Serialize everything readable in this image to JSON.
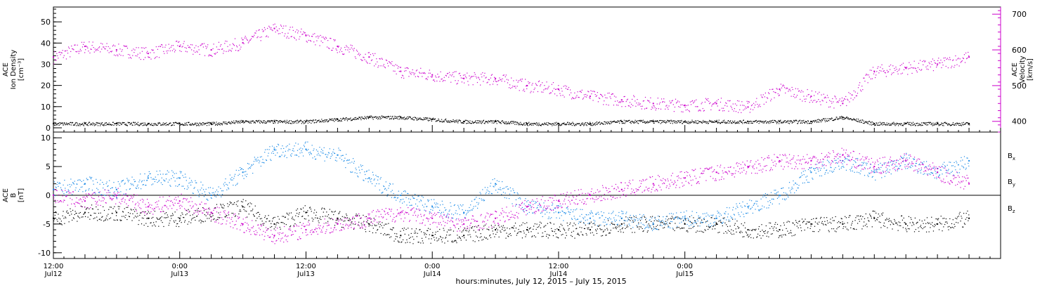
{
  "chart_data": [
    {
      "type": "scatter",
      "panel": "top",
      "left_axis": {
        "label_lines": [
          "ACE",
          "Ion Density",
          "[cm⁻³]"
        ],
        "ylim": [
          -2,
          57
        ],
        "ticks": [
          0,
          10,
          20,
          30,
          40,
          50
        ]
      },
      "right_axis": {
        "label_lines": [
          "ACE",
          "Velocity",
          "[km/s]"
        ],
        "ylim": [
          370,
          720
        ],
        "ticks": [
          400,
          500,
          600,
          700
        ],
        "color": "#cc00cc"
      },
      "series": [
        {
          "name": "Ion Density",
          "color": "#000000",
          "axis": "left",
          "x_hours": [
            0,
            3,
            6,
            9,
            12,
            15,
            18,
            21,
            24,
            27,
            30,
            33,
            36,
            39,
            42,
            45,
            48,
            51,
            54,
            57,
            60,
            63,
            66,
            69,
            72,
            75,
            78,
            81,
            84,
            87
          ],
          "y": [
            2,
            2,
            2,
            2,
            2,
            2,
            3,
            3,
            3,
            4,
            5,
            5,
            4,
            3,
            3,
            2,
            2,
            2,
            3,
            3,
            3,
            3,
            3,
            3,
            3,
            5,
            2,
            2,
            2,
            2
          ]
        },
        {
          "name": "Velocity",
          "color": "#cc00cc",
          "axis": "right",
          "x_hours": [
            0,
            3,
            6,
            9,
            12,
            15,
            18,
            21,
            24,
            27,
            30,
            33,
            36,
            39,
            42,
            45,
            48,
            51,
            54,
            57,
            60,
            63,
            66,
            69,
            72,
            75,
            78,
            81,
            84,
            87
          ],
          "y": [
            580,
            610,
            600,
            590,
            610,
            600,
            620,
            660,
            640,
            610,
            580,
            540,
            530,
            520,
            520,
            500,
            490,
            470,
            460,
            450,
            445,
            450,
            440,
            490,
            470,
            450,
            540,
            550,
            560,
            580
          ]
        }
      ]
    },
    {
      "type": "scatter",
      "panel": "bottom",
      "left_axis": {
        "label_lines": [
          "ACE",
          "B",
          "[nT]"
        ],
        "ylim": [
          -11,
          11
        ],
        "ticks": [
          -10,
          -5,
          0,
          5,
          10
        ]
      },
      "zero_line": true,
      "legend_position": "right",
      "legend": [
        {
          "text": "B",
          "sub": "x",
          "color": "#000000"
        },
        {
          "text": "B",
          "sub": "y",
          "color": "#1a8ae6"
        },
        {
          "text": "B",
          "sub": "z",
          "color": "#cc00cc"
        }
      ],
      "series": [
        {
          "name": "Bx",
          "color": "#000000",
          "x_hours": [
            0,
            3,
            6,
            9,
            12,
            15,
            18,
            21,
            24,
            27,
            30,
            33,
            36,
            39,
            42,
            45,
            48,
            51,
            54,
            57,
            60,
            63,
            66,
            69,
            72,
            75,
            78,
            81,
            84,
            87
          ],
          "y": [
            -4,
            -3,
            -3,
            -4,
            -4,
            -3,
            -2,
            -5,
            -3,
            -4,
            -5,
            -7,
            -7,
            -7,
            -6,
            -6,
            -6,
            -6,
            -5,
            -5,
            -5,
            -5,
            -6,
            -6,
            -5,
            -5,
            -4,
            -5,
            -5,
            -4
          ]
        },
        {
          "name": "By",
          "color": "#1a8ae6",
          "x_hours": [
            0,
            3,
            6,
            9,
            12,
            15,
            18,
            21,
            24,
            27,
            30,
            33,
            36,
            39,
            42,
            45,
            48,
            51,
            54,
            57,
            60,
            63,
            66,
            69,
            72,
            75,
            78,
            81,
            84,
            87
          ],
          "y": [
            1,
            2,
            1,
            3,
            3,
            0,
            4,
            8,
            8,
            7,
            3,
            0,
            -2,
            -3,
            2,
            -2,
            -3,
            -4,
            -4,
            -5,
            -4,
            -4,
            -2,
            0,
            4,
            6,
            4,
            6,
            4,
            6
          ]
        },
        {
          "name": "Bz",
          "color": "#cc00cc",
          "x_hours": [
            0,
            3,
            6,
            9,
            12,
            15,
            18,
            21,
            24,
            27,
            30,
            33,
            36,
            39,
            42,
            45,
            48,
            51,
            54,
            57,
            60,
            63,
            66,
            69,
            72,
            75,
            78,
            81,
            84,
            87
          ],
          "y": [
            0,
            -1,
            0,
            -2,
            -1,
            -3,
            -5,
            -7,
            -6,
            -5,
            -4,
            -3,
            -4,
            -5,
            -4,
            -2,
            -1,
            0,
            1,
            2,
            3,
            4,
            5,
            6,
            6,
            7,
            5,
            6,
            4,
            2
          ]
        }
      ]
    }
  ],
  "x_axis": {
    "xlim_hours": [
      0,
      90
    ],
    "ticks": [
      {
        "hour": 0,
        "time": "12:00",
        "date": "Jul12"
      },
      {
        "hour": 12,
        "time": "0:00",
        "date": "Jul13"
      },
      {
        "hour": 24,
        "time": "12:00",
        "date": "Jul13"
      },
      {
        "hour": 36,
        "time": "0:00",
        "date": "Jul14"
      },
      {
        "hour": 48,
        "time": "12:00",
        "date": "Jul14"
      },
      {
        "hour": 60,
        "time": "0:00",
        "date": "Jul15"
      }
    ],
    "label": "hours:minutes, July 12, 2015 – July 15, 2015"
  }
}
